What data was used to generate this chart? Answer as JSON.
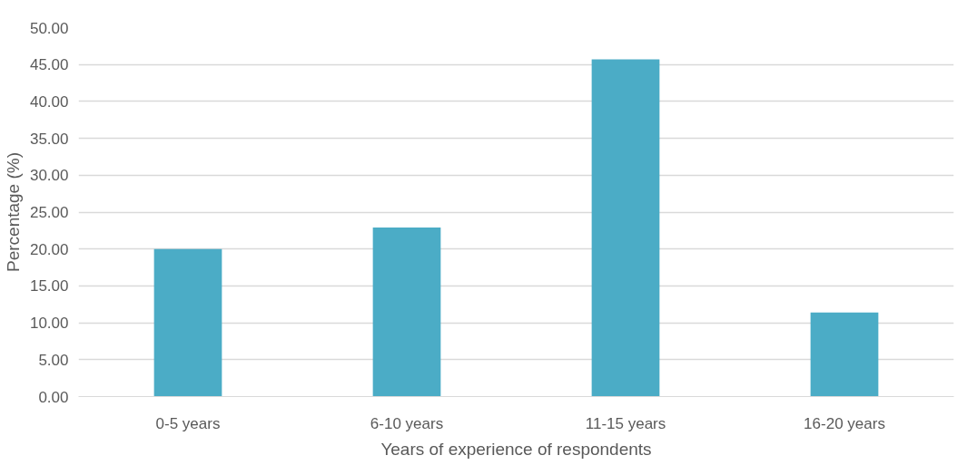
{
  "chart_data": {
    "type": "bar",
    "categories": [
      "0-5 years",
      "6-10 years",
      "11-15 years",
      "16-20 years"
    ],
    "values": [
      20.0,
      22.9,
      45.7,
      11.4
    ],
    "color": "#4bacc6",
    "xlabel": "Years of experience of respondents",
    "ylabel": "Percentage (%)",
    "ylim": [
      0,
      50
    ],
    "yticks": [
      {
        "value": 0,
        "label": "0.00"
      },
      {
        "value": 5,
        "label": "5.00"
      },
      {
        "value": 10,
        "label": "10.00"
      },
      {
        "value": 15,
        "label": "15.00"
      },
      {
        "value": 20,
        "label": "20.00"
      },
      {
        "value": 25,
        "label": "25.00"
      },
      {
        "value": 30,
        "label": "30.00"
      },
      {
        "value": 35,
        "label": "35.00"
      },
      {
        "value": 40,
        "label": "40.00"
      },
      {
        "value": 45,
        "label": "45.00"
      },
      {
        "value": 50,
        "label": "50.00"
      }
    ],
    "grid": "y"
  }
}
